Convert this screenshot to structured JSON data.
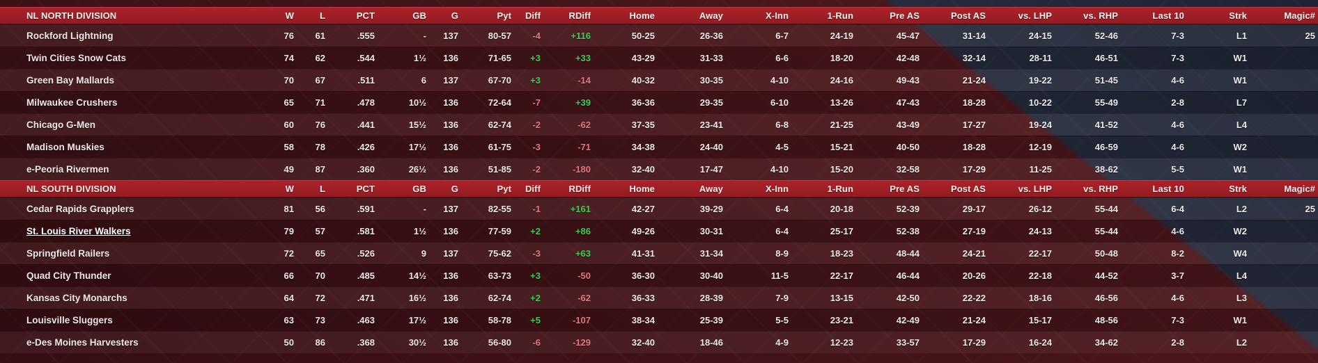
{
  "colors": {
    "positive": "#44cb54",
    "negative": "#e3797e",
    "header_bg": "#a02026",
    "maroon_bg": "#441419",
    "navy_bg": "#262c3e"
  },
  "table": {
    "columns": [
      "W",
      "L",
      "PCT",
      "GB",
      "G",
      "Pyt",
      "Diff",
      "RDiff",
      "Home",
      "Away",
      "X-Inn",
      "1-Run",
      "Pre AS",
      "Post AS",
      "vs. LHP",
      "vs. RHP",
      "Last 10",
      "Strk",
      "Magic#"
    ],
    "divisions": [
      {
        "title": "NL NORTH DIVISION",
        "teams": [
          {
            "name": "Rockford Lightning",
            "highlighted": false,
            "values": [
              "76",
              "61",
              ".555",
              "-",
              "137",
              "80-57",
              "-4",
              "+116",
              "50-25",
              "26-36",
              "6-7",
              "24-19",
              "45-47",
              "31-14",
              "24-15",
              "52-46",
              "7-3",
              "L1",
              "25"
            ]
          },
          {
            "name": "Twin Cities Snow Cats",
            "highlighted": false,
            "values": [
              "74",
              "62",
              ".544",
              "1½",
              "136",
              "71-65",
              "+3",
              "+33",
              "43-29",
              "31-33",
              "6-6",
              "18-20",
              "42-48",
              "32-14",
              "28-11",
              "46-51",
              "7-3",
              "W1",
              ""
            ]
          },
          {
            "name": "Green Bay Mallards",
            "highlighted": false,
            "values": [
              "70",
              "67",
              ".511",
              "6",
              "137",
              "67-70",
              "+3",
              "-14",
              "40-32",
              "30-35",
              "4-10",
              "24-16",
              "49-43",
              "21-24",
              "19-22",
              "51-45",
              "4-6",
              "W1",
              ""
            ]
          },
          {
            "name": "Milwaukee Crushers",
            "highlighted": false,
            "values": [
              "65",
              "71",
              ".478",
              "10½",
              "136",
              "72-64",
              "-7",
              "+39",
              "36-36",
              "29-35",
              "6-10",
              "13-26",
              "47-43",
              "18-28",
              "10-22",
              "55-49",
              "2-8",
              "L7",
              ""
            ]
          },
          {
            "name": "Chicago G-Men",
            "highlighted": false,
            "values": [
              "60",
              "76",
              ".441",
              "15½",
              "136",
              "62-74",
              "-2",
              "-62",
              "37-35",
              "23-41",
              "6-8",
              "21-25",
              "43-49",
              "17-27",
              "19-24",
              "41-52",
              "4-6",
              "L4",
              ""
            ]
          },
          {
            "name": "Madison Muskies",
            "highlighted": false,
            "values": [
              "58",
              "78",
              ".426",
              "17½",
              "136",
              "61-75",
              "-3",
              "-71",
              "34-38",
              "24-40",
              "4-5",
              "15-21",
              "40-50",
              "18-28",
              "12-19",
              "46-59",
              "4-6",
              "W2",
              ""
            ]
          },
          {
            "name": "e-Peoria Rivermen",
            "highlighted": false,
            "values": [
              "49",
              "87",
              ".360",
              "26½",
              "136",
              "51-85",
              "-2",
              "-180",
              "32-40",
              "17-47",
              "4-10",
              "15-20",
              "32-58",
              "17-29",
              "11-25",
              "38-62",
              "5-5",
              "W1",
              ""
            ]
          }
        ]
      },
      {
        "title": "NL SOUTH DIVISION",
        "teams": [
          {
            "name": "Cedar Rapids Grapplers",
            "highlighted": false,
            "values": [
              "81",
              "56",
              ".591",
              "-",
              "137",
              "82-55",
              "-1",
              "+161",
              "42-27",
              "39-29",
              "6-4",
              "20-18",
              "52-39",
              "29-17",
              "26-12",
              "55-44",
              "6-4",
              "L2",
              "25"
            ]
          },
          {
            "name": "St. Louis River Walkers",
            "highlighted": true,
            "values": [
              "79",
              "57",
              ".581",
              "1½",
              "136",
              "77-59",
              "+2",
              "+86",
              "49-26",
              "30-31",
              "6-4",
              "25-17",
              "52-38",
              "27-19",
              "24-13",
              "55-44",
              "4-6",
              "W2",
              ""
            ]
          },
          {
            "name": "Springfield Railers",
            "highlighted": false,
            "values": [
              "72",
              "65",
              ".526",
              "9",
              "137",
              "75-62",
              "-3",
              "+63",
              "41-31",
              "31-34",
              "8-9",
              "18-23",
              "48-44",
              "24-21",
              "22-17",
              "50-48",
              "8-2",
              "W4",
              ""
            ]
          },
          {
            "name": "Quad City Thunder",
            "highlighted": false,
            "values": [
              "66",
              "70",
              ".485",
              "14½",
              "136",
              "63-73",
              "+3",
              "-50",
              "36-30",
              "30-40",
              "11-5",
              "22-17",
              "46-44",
              "20-26",
              "22-18",
              "44-52",
              "3-7",
              "L4",
              ""
            ]
          },
          {
            "name": "Kansas City Monarchs",
            "highlighted": false,
            "values": [
              "64",
              "72",
              ".471",
              "16½",
              "136",
              "62-74",
              "+2",
              "-62",
              "36-33",
              "28-39",
              "7-9",
              "13-15",
              "42-50",
              "22-22",
              "18-16",
              "46-56",
              "4-6",
              "L3",
              ""
            ]
          },
          {
            "name": "Louisville Sluggers",
            "highlighted": false,
            "values": [
              "63",
              "73",
              ".463",
              "17½",
              "136",
              "58-78",
              "+5",
              "-107",
              "38-34",
              "25-39",
              "5-5",
              "23-21",
              "42-49",
              "21-24",
              "15-17",
              "48-56",
              "7-3",
              "W1",
              ""
            ]
          },
          {
            "name": "e-Des Moines Harvesters",
            "highlighted": false,
            "values": [
              "50",
              "86",
              ".368",
              "30½",
              "136",
              "56-80",
              "-6",
              "-129",
              "32-40",
              "18-46",
              "4-9",
              "12-23",
              "33-57",
              "17-29",
              "16-24",
              "34-62",
              "2-8",
              "L2",
              ""
            ]
          }
        ]
      }
    ]
  }
}
